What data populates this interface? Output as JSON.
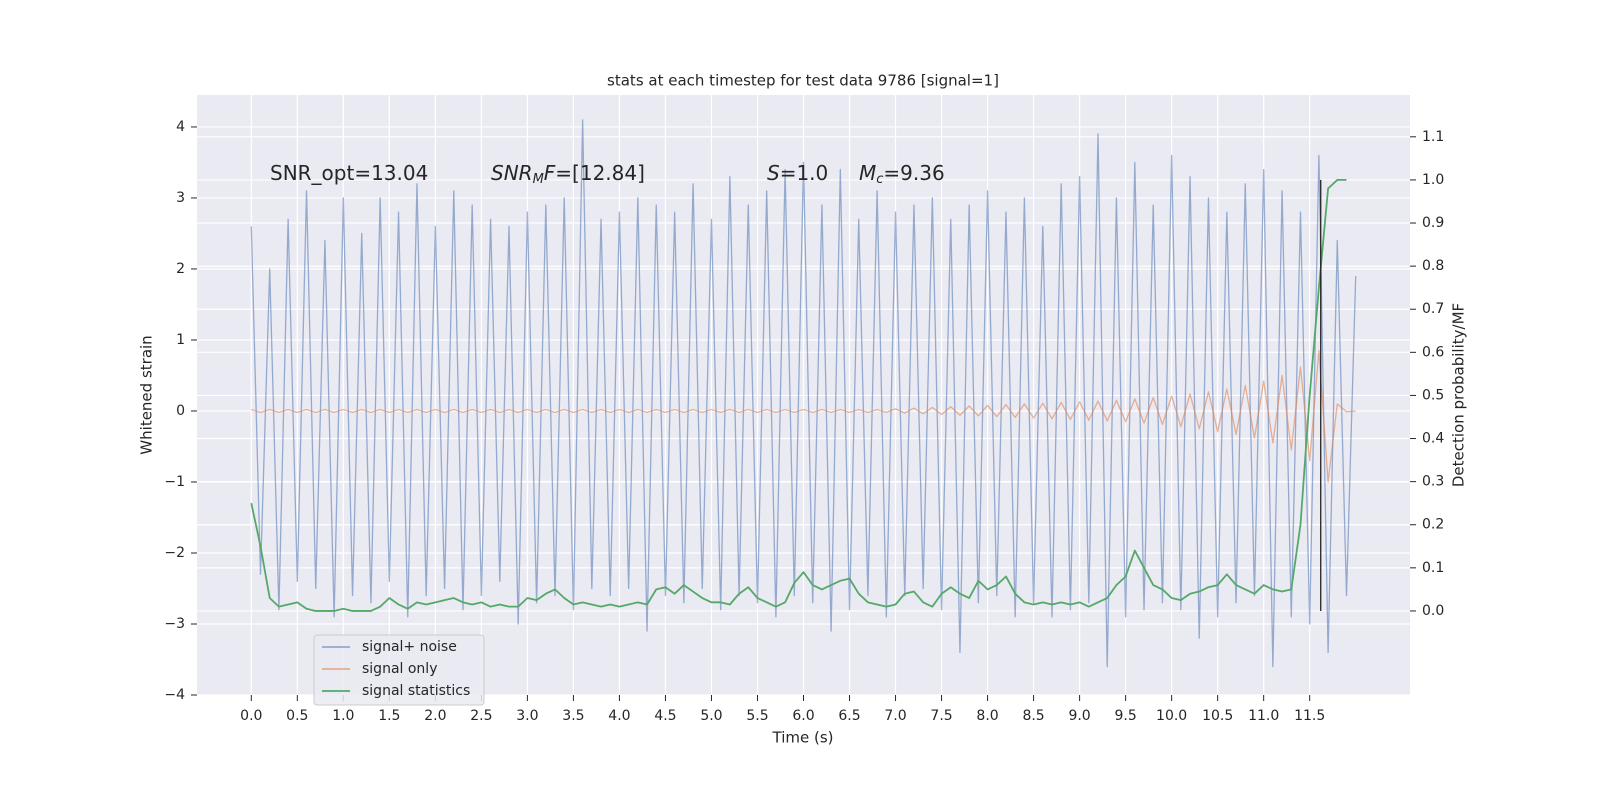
{
  "chart_data": {
    "type": "line",
    "title": "stats at each timestep for test data 9786 [signal=1]",
    "xlabel": "Time (s)",
    "ylabel": "Whitened strain",
    "y2label": "Detection probability/MF",
    "x": [
      0,
      0.1,
      0.2,
      0.3,
      0.4,
      0.5,
      0.6,
      0.7,
      0.8,
      0.9,
      1,
      1.1,
      1.2,
      1.3,
      1.4,
      1.5,
      1.6,
      1.7,
      1.8,
      1.9,
      2,
      2.1,
      2.2,
      2.3,
      2.4,
      2.5,
      2.6,
      2.7,
      2.8,
      2.9,
      3,
      3.1,
      3.2,
      3.3,
      3.4,
      3.5,
      3.6,
      3.7,
      3.8,
      3.9,
      4,
      4.1,
      4.2,
      4.3,
      4.4,
      4.5,
      4.6,
      4.7,
      4.8,
      4.9,
      5,
      5.1,
      5.2,
      5.3,
      5.4,
      5.5,
      5.6,
      5.7,
      5.8,
      5.9,
      6,
      6.1,
      6.2,
      6.3,
      6.4,
      6.5,
      6.6,
      6.7,
      6.8,
      6.9,
      7,
      7.1,
      7.2,
      7.3,
      7.4,
      7.5,
      7.6,
      7.7,
      7.8,
      7.9,
      8,
      8.1,
      8.2,
      8.3,
      8.4,
      8.5,
      8.6,
      8.7,
      8.8,
      8.9,
      9,
      9.1,
      9.2,
      9.3,
      9.4,
      9.5,
      9.6,
      9.7,
      9.8,
      9.9,
      10,
      10.1,
      10.2,
      10.3,
      10.4,
      10.5,
      10.6,
      10.7,
      10.8,
      10.9,
      11,
      11.1,
      11.2,
      11.3,
      11.4,
      11.5,
      11.6,
      11.7,
      11.8,
      11.9,
      12
    ],
    "series": [
      {
        "name": "signal+ noise",
        "color": "#4c72b0",
        "opacity": 0.55,
        "values": [
          2.6,
          -2.3,
          2.0,
          -2.8,
          2.7,
          -2.4,
          3.1,
          -2.5,
          2.4,
          -2.9,
          3.0,
          -2.6,
          2.5,
          -2.7,
          3.0,
          -2.4,
          2.8,
          -2.9,
          3.2,
          -2.6,
          2.6,
          -2.5,
          3.1,
          -2.8,
          2.9,
          -2.6,
          2.7,
          -2.4,
          2.6,
          -3.0,
          2.8,
          -2.7,
          2.9,
          -2.6,
          3.0,
          -2.8,
          4.1,
          -2.5,
          2.7,
          -2.6,
          2.8,
          -2.5,
          3.0,
          -3.1,
          2.9,
          -2.6,
          2.8,
          -2.7,
          3.2,
          -2.5,
          2.7,
          -2.8,
          3.3,
          -2.6,
          2.9,
          -2.7,
          3.1,
          -2.9,
          3.4,
          -2.6,
          3.5,
          -2.7,
          2.9,
          -3.1,
          3.4,
          -2.8,
          2.7,
          -2.6,
          3.1,
          -2.9,
          2.8,
          -2.6,
          2.9,
          -2.5,
          3.0,
          -2.8,
          2.7,
          -3.4,
          2.9,
          -2.7,
          3.1,
          -2.6,
          2.8,
          -2.9,
          3.0,
          -2.7,
          2.6,
          -2.9,
          3.2,
          -2.8,
          3.3,
          -2.7,
          3.9,
          -3.6,
          3.0,
          -2.9,
          3.5,
          -2.8,
          2.9,
          -2.7,
          3.6,
          -2.8,
          3.3,
          -3.2,
          3.0,
          -2.9,
          2.8,
          -2.7,
          3.2,
          -2.6,
          3.4,
          -3.6,
          3.1,
          -2.9,
          2.8,
          -3.0,
          3.6,
          -3.4,
          2.4,
          -2.6,
          1.9
        ]
      },
      {
        "name": "signal only",
        "color": "#dd8452",
        "opacity": 0.6,
        "values": [
          0.02,
          -0.02,
          0.02,
          -0.02,
          0.02,
          -0.02,
          0.02,
          -0.02,
          0.02,
          -0.02,
          0.02,
          -0.02,
          0.02,
          -0.02,
          0.02,
          -0.02,
          0.02,
          -0.02,
          0.02,
          -0.02,
          0.02,
          -0.02,
          0.02,
          -0.02,
          0.02,
          -0.02,
          0.02,
          -0.02,
          0.02,
          -0.02,
          0.02,
          -0.02,
          0.02,
          -0.02,
          0.02,
          -0.02,
          0.02,
          -0.02,
          0.02,
          -0.02,
          0.02,
          -0.02,
          0.02,
          -0.02,
          0.02,
          -0.02,
          0.02,
          -0.02,
          0.02,
          -0.02,
          0.02,
          -0.02,
          0.02,
          -0.02,
          0.02,
          -0.02,
          0.02,
          -0.02,
          0.02,
          -0.02,
          0.02,
          -0.02,
          0.02,
          -0.02,
          0.02,
          -0.02,
          0.02,
          -0.02,
          0.02,
          -0.02,
          0.03,
          -0.03,
          0.04,
          -0.04,
          0.05,
          -0.05,
          0.06,
          -0.06,
          0.07,
          -0.07,
          0.08,
          -0.08,
          0.09,
          -0.09,
          0.1,
          -0.1,
          0.11,
          -0.11,
          0.12,
          -0.12,
          0.13,
          -0.13,
          0.14,
          -0.14,
          0.15,
          -0.15,
          0.17,
          -0.17,
          0.19,
          -0.19,
          0.21,
          -0.22,
          0.24,
          -0.25,
          0.27,
          -0.29,
          0.31,
          -0.33,
          0.36,
          -0.38,
          0.42,
          -0.45,
          0.5,
          -0.55,
          0.62,
          -0.7,
          0.85,
          -1.0,
          0.1,
          -0.01,
          0.0
        ]
      },
      {
        "name": "signal statistics",
        "color": "#55a868",
        "opacity": 1,
        "axis": "y2",
        "values": [
          0.25,
          0.15,
          0.03,
          0.01,
          0.015,
          0.02,
          0.005,
          0.0,
          0.0,
          0.0,
          0.005,
          0.0,
          0.0,
          0.0,
          0.01,
          0.03,
          0.015,
          0.005,
          0.02,
          0.015,
          0.02,
          0.025,
          0.03,
          0.02,
          0.015,
          0.02,
          0.01,
          0.015,
          0.01,
          0.01,
          0.03,
          0.025,
          0.04,
          0.05,
          0.03,
          0.015,
          0.02,
          0.015,
          0.01,
          0.015,
          0.01,
          0.015,
          0.02,
          0.015,
          0.05,
          0.055,
          0.04,
          0.06,
          0.045,
          0.03,
          0.02,
          0.02,
          0.015,
          0.04,
          0.055,
          0.03,
          0.02,
          0.01,
          0.02,
          0.065,
          0.09,
          0.06,
          0.05,
          0.06,
          0.07,
          0.075,
          0.04,
          0.02,
          0.015,
          0.01,
          0.015,
          0.04,
          0.045,
          0.02,
          0.01,
          0.04,
          0.055,
          0.04,
          0.03,
          0.07,
          0.05,
          0.06,
          0.08,
          0.04,
          0.02,
          0.015,
          0.02,
          0.015,
          0.02,
          0.015,
          0.02,
          0.01,
          0.02,
          0.03,
          0.06,
          0.08,
          0.14,
          0.1,
          0.06,
          0.05,
          0.03,
          0.025,
          0.04,
          0.045,
          0.055,
          0.06,
          0.085,
          0.06,
          0.05,
          0.04,
          0.06,
          0.05,
          0.045,
          0.05,
          0.2,
          0.5,
          0.75,
          0.98,
          1.0,
          1.0,
          null
        ]
      }
    ],
    "vline": {
      "x": 11.62,
      "ymin": 0.0,
      "ymax": 1.0,
      "axis": "y2",
      "color": "#222222"
    },
    "annotations": [
      [
        {
          "text": "SNR_opt=13.04"
        }
      ],
      [
        {
          "text": "SNR",
          "italic": true
        },
        {
          "text": "M",
          "italic": true,
          "sub": true
        },
        {
          "text": "F",
          "italic": true
        },
        {
          "text": "=[12.84]"
        }
      ],
      [
        {
          "text": "S",
          "italic": true
        },
        {
          "text": "=1.0"
        }
      ],
      [
        {
          "text": "M",
          "italic": true
        },
        {
          "text": "c",
          "italic": true,
          "sub": true
        },
        {
          "text": "=9.36"
        }
      ]
    ],
    "xlim": [
      -0.59,
      12.59
    ],
    "xticks": [
      {
        "value": 0,
        "label": "0.0"
      },
      0.5,
      {
        "value": 1,
        "label": "1.0"
      },
      1.5,
      {
        "value": 2,
        "label": "2.0"
      },
      2.5,
      {
        "value": 3,
        "label": "3.0"
      },
      3.5,
      {
        "value": 4,
        "label": "4.0"
      },
      4.5,
      {
        "value": 5,
        "label": "5.0"
      },
      5.5,
      {
        "value": 6,
        "label": "6.0"
      },
      6.5,
      {
        "value": 7,
        "label": "7.0"
      },
      7.5,
      {
        "value": 8,
        "label": "8.0"
      },
      8.5,
      {
        "value": 9,
        "label": "9.0"
      },
      9.5,
      {
        "value": 10,
        "label": "10.0"
      },
      10.5,
      {
        "value": 11,
        "label": "11.0"
      },
      11.5
    ],
    "ylim": [
      -4,
      4.45
    ],
    "yticks": [
      {
        "value": -4,
        "label": "−4"
      },
      {
        "value": -3,
        "label": "−3"
      },
      {
        "value": -2,
        "label": "−2"
      },
      {
        "value": -1,
        "label": "−1"
      },
      0,
      1,
      2,
      3,
      4
    ],
    "y2lim": [
      -0.195,
      1.197
    ],
    "y2ticks": [
      {
        "value": 0,
        "label": "0.0"
      },
      0.1,
      0.2,
      0.3,
      0.4,
      0.5,
      0.6,
      0.7,
      0.8,
      0.9,
      {
        "value": 1,
        "label": "1.0"
      },
      1.1
    ],
    "grid": true,
    "legend": "lower left"
  }
}
